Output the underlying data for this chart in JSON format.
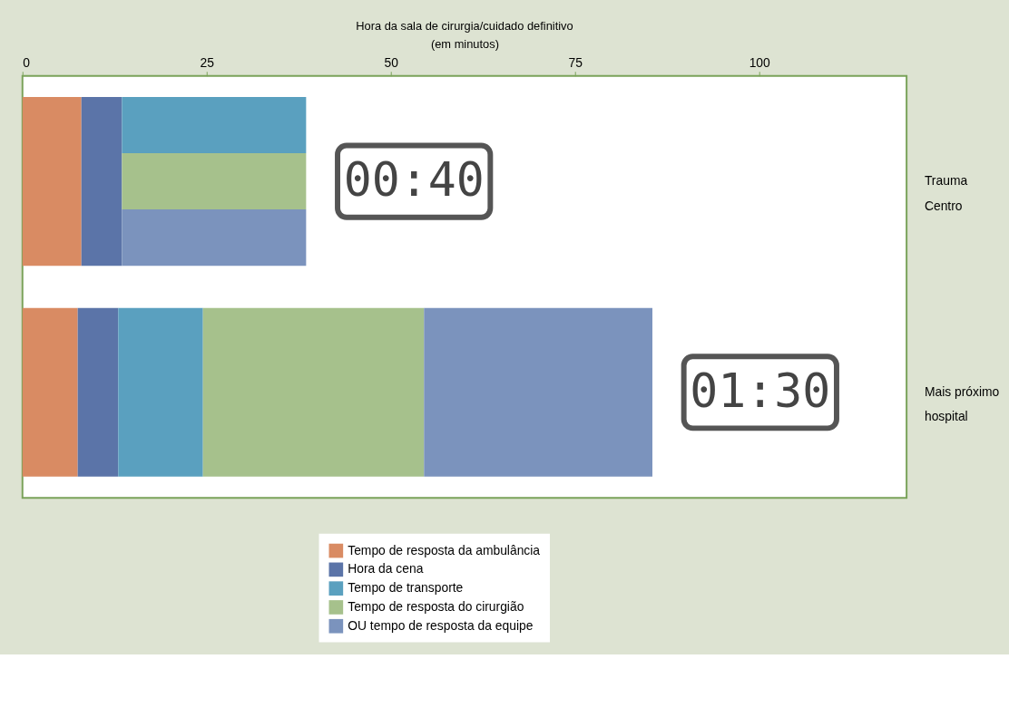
{
  "chart_data": {
    "type": "bar",
    "orientation": "horizontal",
    "title": "Hora da sala de cirurgia/cuidado definitivo",
    "xlabel": "(em minutos)",
    "categories": [
      "Trauma\nCentro",
      "Mais próximo\nhospital"
    ],
    "series": [
      {
        "name": "Tempo de resposta da ambulância",
        "color": "#d98b63",
        "base": [
          0,
          0
        ],
        "values": [
          8,
          7.5
        ]
      },
      {
        "name": "Hora da cena",
        "color": "#5b74a8",
        "base": [
          8,
          7.5
        ],
        "values": [
          5.5,
          5.5
        ]
      },
      {
        "name": "Tempo de transporte",
        "color": "#5aa0bf",
        "base": [
          13.5,
          13
        ],
        "values": [
          25,
          11.5
        ]
      },
      {
        "name": "Tempo de resposta do cirurgião",
        "color": "#a6c18c",
        "base": [
          13.5,
          24.5
        ],
        "values": [
          25,
          30
        ]
      },
      {
        "name": "OU tempo de resposta da equipe",
        "color": "#7b93bd",
        "base": [
          13.5,
          54.5
        ],
        "values": [
          25,
          31
        ]
      }
    ],
    "xlim": [
      0,
      120
    ],
    "xticks": [
      0,
      25,
      50,
      75,
      100
    ],
    "grid": false,
    "legend": "bottom",
    "annotations": [
      "00:40",
      "01:30"
    ]
  }
}
